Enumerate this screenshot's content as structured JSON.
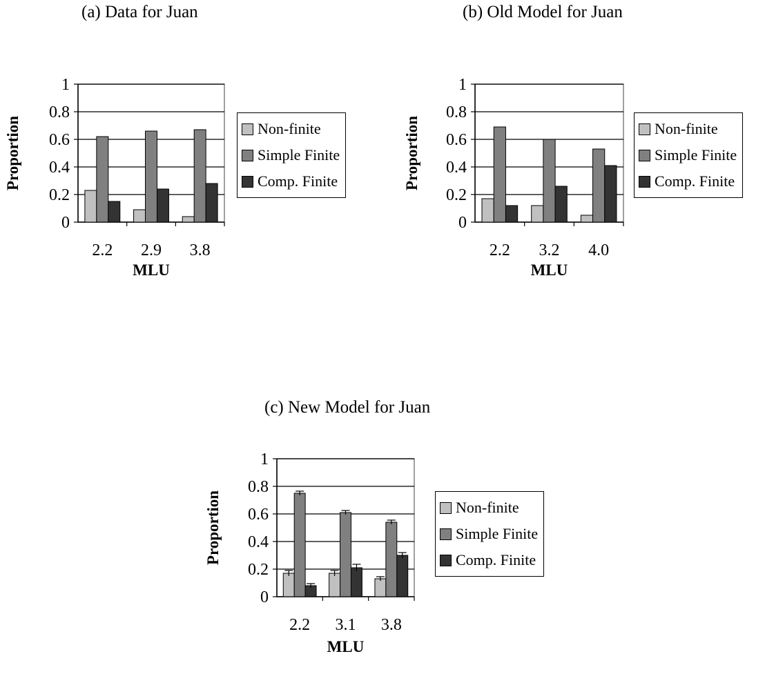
{
  "colors": {
    "Non-finite": "#c0c0c0",
    "Simple Finite": "#808080",
    "Comp. Finite": "#333333"
  },
  "chart_data": [
    {
      "type": "bar",
      "title": "(a) Data for Juan",
      "xlabel": "MLU",
      "ylabel": "Proportion",
      "ylim": [
        0,
        1
      ],
      "yticks": [
        "0",
        "0.2",
        "0.4",
        "0.6",
        "0.8",
        "1"
      ],
      "grid": true,
      "legend": "right",
      "categories": [
        "2.2",
        "2.9",
        "3.8"
      ],
      "series": [
        {
          "name": "Non-finite",
          "values": [
            0.23,
            0.09,
            0.04
          ]
        },
        {
          "name": "Simple Finite",
          "values": [
            0.62,
            0.66,
            0.67
          ]
        },
        {
          "name": "Comp. Finite",
          "values": [
            0.15,
            0.24,
            0.28
          ]
        }
      ]
    },
    {
      "type": "bar",
      "title": "(b) Old Model for Juan",
      "xlabel": "MLU",
      "ylabel": "Proportion",
      "ylim": [
        0,
        1
      ],
      "yticks": [
        "0",
        "0.2",
        "0.4",
        "0.6",
        "0.8",
        "1"
      ],
      "grid": true,
      "legend": "right",
      "categories": [
        "2.2",
        "3.2",
        "4.0"
      ],
      "series": [
        {
          "name": "Non-finite",
          "values": [
            0.17,
            0.12,
            0.05
          ]
        },
        {
          "name": "Simple Finite",
          "values": [
            0.69,
            0.6,
            0.53
          ]
        },
        {
          "name": "Comp. Finite",
          "values": [
            0.12,
            0.26,
            0.41
          ]
        }
      ]
    },
    {
      "type": "bar",
      "title": "(c) New Model for Juan",
      "xlabel": "MLU",
      "ylabel": "Proportion",
      "ylim": [
        0,
        1
      ],
      "yticks": [
        "0",
        "0.2",
        "0.4",
        "0.6",
        "0.8",
        "1"
      ],
      "grid": true,
      "legend": "right",
      "error_bars": true,
      "categories": [
        "2.2",
        "3.1",
        "3.8"
      ],
      "series": [
        {
          "name": "Non-finite",
          "values": [
            0.17,
            0.17,
            0.13
          ],
          "errors": [
            0.02,
            0.02,
            0.015
          ]
        },
        {
          "name": "Simple Finite",
          "values": [
            0.75,
            0.61,
            0.54
          ],
          "errors": [
            0.015,
            0.015,
            0.015
          ]
        },
        {
          "name": "Comp. Finite",
          "values": [
            0.08,
            0.21,
            0.3
          ],
          "errors": [
            0.015,
            0.025,
            0.02
          ]
        }
      ]
    }
  ]
}
